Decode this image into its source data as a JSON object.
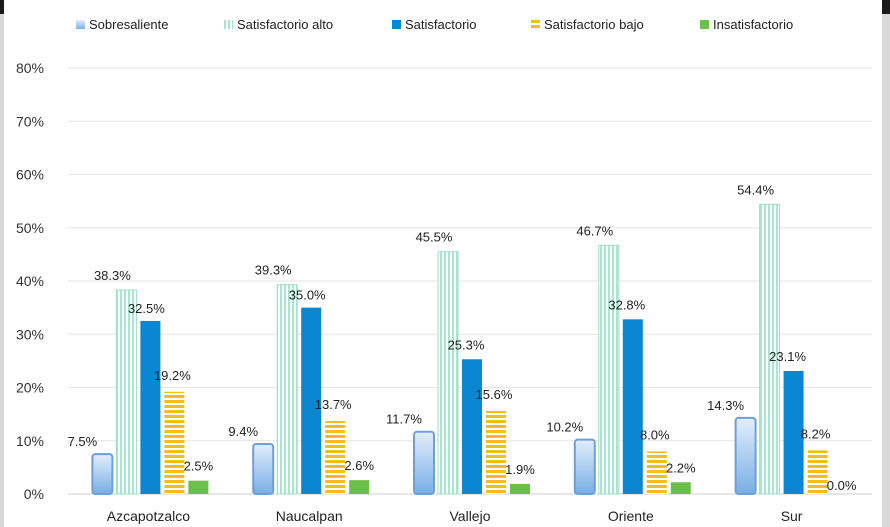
{
  "chart_data": {
    "type": "bar",
    "title": "",
    "xlabel": "",
    "ylabel": "",
    "categories": [
      "Azcapotzalco",
      "Naucalpan",
      "Vallejo",
      "Oriente",
      "Sur"
    ],
    "ylim": [
      0,
      80
    ],
    "yticks": [
      "0%",
      "10%",
      "20%",
      "30%",
      "40%",
      "50%",
      "60%",
      "70%",
      "80%"
    ],
    "grid": true,
    "legend_position": "top",
    "series": [
      {
        "name": "Sobresaliente",
        "values": [
          7.5,
          9.4,
          11.7,
          10.2,
          14.3
        ],
        "labels": [
          "7.5%",
          "9.4%",
          "11.7%",
          "10.2%",
          "14.3%"
        ],
        "color": "#9cc3ec"
      },
      {
        "name": "Satisfactorio alto",
        "values": [
          38.3,
          39.3,
          45.5,
          46.7,
          54.4
        ],
        "labels": [
          "38.3%",
          "39.3%",
          "45.5%",
          "46.7%",
          "54.4%"
        ],
        "color": "#b7ead8"
      },
      {
        "name": "Satisfactorio",
        "values": [
          32.5,
          35.0,
          25.3,
          32.8,
          23.1
        ],
        "labels": [
          "32.5%",
          "35.0%",
          "25.3%",
          "32.8%",
          "23.1%"
        ],
        "color": "#0b86d1"
      },
      {
        "name": "Satisfactorio bajo",
        "values": [
          19.2,
          13.7,
          15.6,
          8.0,
          8.2
        ],
        "labels": [
          "19.2%",
          "13.7%",
          "15.6%",
          "8.0%",
          "8.2%"
        ],
        "color": "#f2be1f"
      },
      {
        "name": "Insatisfactorio",
        "values": [
          2.5,
          2.6,
          1.9,
          2.2,
          0.0
        ],
        "labels": [
          "2.5%",
          "2.6%",
          "1.9%",
          "2.2%",
          "0.0%"
        ],
        "color": "#6cc04a"
      }
    ]
  }
}
